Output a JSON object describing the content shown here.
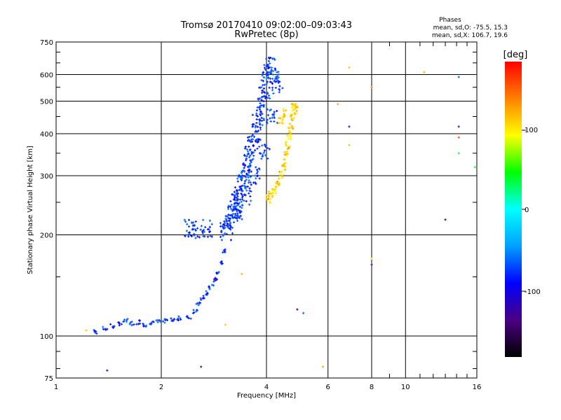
{
  "header": {
    "title": "Tromsø 20170410 09:02:00–09:03:43",
    "subtitle": "RwPretec (8p)"
  },
  "phases_box": {
    "heading": "Phases",
    "line1": "mean, sd,O: -75.5, 15.3",
    "line2": "mean, sd,X: 106.7, 19.6"
  },
  "colorbar": {
    "label": "[deg]",
    "tick_labels": [
      "100",
      "0",
      "-100"
    ],
    "stops": [
      "#000000",
      "#4b0082",
      "#0000ff",
      "#00a0ff",
      "#00ffff",
      "#00ff00",
      "#ffff00",
      "#ff8000",
      "#ff0000"
    ]
  },
  "chart_data": {
    "type": "scatter",
    "xlabel": "Frequency [MHz]",
    "ylabel": "Stationary phase Virtual Height [km]",
    "x_scale": "log",
    "y_scale": "log",
    "xlim": [
      1,
      16
    ],
    "ylim": [
      75,
      750
    ],
    "x_ticks": [
      1,
      2,
      4,
      6,
      8,
      10,
      16
    ],
    "y_ticks": [
      75,
      100,
      200,
      300,
      400,
      500,
      600,
      750
    ],
    "grid": true,
    "color_scale_range_deg": [
      -180,
      180
    ],
    "o_mode_points": [
      [
        1.3,
        103
      ],
      [
        1.38,
        105
      ],
      [
        1.45,
        107
      ],
      [
        1.52,
        109
      ],
      [
        1.58,
        111
      ],
      [
        1.65,
        109
      ],
      [
        1.72,
        110
      ],
      [
        1.8,
        108
      ],
      [
        1.88,
        110
      ],
      [
        1.96,
        110
      ],
      [
        2.05,
        111
      ],
      [
        2.15,
        112
      ],
      [
        2.25,
        113
      ],
      [
        2.4,
        114
      ],
      [
        2.5,
        118
      ],
      [
        2.55,
        125
      ],
      [
        2.62,
        130
      ],
      [
        2.7,
        134
      ],
      [
        2.78,
        140
      ],
      [
        2.85,
        147
      ],
      [
        2.92,
        155
      ],
      [
        2.98,
        165
      ],
      [
        3.02,
        180
      ],
      [
        3.06,
        205
      ],
      [
        3.1,
        215
      ],
      [
        3.15,
        225
      ],
      [
        3.2,
        235
      ],
      [
        3.25,
        245
      ],
      [
        3.3,
        255
      ],
      [
        3.35,
        265
      ],
      [
        3.4,
        280
      ],
      [
        3.45,
        295
      ],
      [
        3.5,
        310
      ],
      [
        3.55,
        330
      ],
      [
        3.6,
        350
      ],
      [
        3.66,
        375
      ],
      [
        3.72,
        400
      ],
      [
        3.78,
        430
      ],
      [
        3.85,
        460
      ],
      [
        3.9,
        500
      ],
      [
        3.95,
        540
      ],
      [
        4.0,
        580
      ],
      [
        4.05,
        620
      ],
      [
        4.1,
        640
      ],
      [
        4.2,
        600
      ],
      [
        4.3,
        560
      ],
      [
        2.4,
        210
      ],
      [
        2.55,
        208
      ],
      [
        2.7,
        210
      ],
      [
        3.3,
        230
      ],
      [
        3.5,
        260
      ],
      [
        3.7,
        300
      ],
      [
        3.95,
        350
      ],
      [
        4.15,
        450
      ]
    ],
    "x_mode_points": [
      [
        4.05,
        255
      ],
      [
        4.12,
        262
      ],
      [
        4.2,
        270
      ],
      [
        4.3,
        282
      ],
      [
        4.4,
        300
      ],
      [
        4.48,
        320
      ],
      [
        4.55,
        345
      ],
      [
        4.6,
        370
      ],
      [
        4.65,
        395
      ],
      [
        4.7,
        420
      ],
      [
        4.75,
        450
      ],
      [
        4.8,
        480
      ],
      [
        4.85,
        470
      ],
      [
        4.4,
        440
      ],
      [
        4.5,
        460
      ]
    ],
    "scatter_points": [
      {
        "x": 6.4,
        "y": 490,
        "phase": 120
      },
      {
        "x": 6.9,
        "y": 630,
        "phase": 110
      },
      {
        "x": 6.9,
        "y": 420,
        "phase": -120
      },
      {
        "x": 6.9,
        "y": 370,
        "phase": 115
      },
      {
        "x": 8.0,
        "y": 550,
        "phase": 140
      },
      {
        "x": 8.0,
        "y": 170,
        "phase": 100
      },
      {
        "x": 8.0,
        "y": 163,
        "phase": -110
      },
      {
        "x": 11.3,
        "y": 610,
        "phase": 120
      },
      {
        "x": 13.0,
        "y": 222,
        "phase": -140
      },
      {
        "x": 14.2,
        "y": 590,
        "phase": -60
      },
      {
        "x": 14.2,
        "y": 420,
        "phase": -130
      },
      {
        "x": 14.2,
        "y": 390,
        "phase": 150
      },
      {
        "x": 14.2,
        "y": 350,
        "phase": 30
      },
      {
        "x": 15.8,
        "y": 318,
        "phase": 40
      },
      {
        "x": 1.22,
        "y": 104,
        "phase": 110
      },
      {
        "x": 1.4,
        "y": 79,
        "phase": -120
      },
      {
        "x": 2.6,
        "y": 81,
        "phase": -140
      },
      {
        "x": 3.05,
        "y": 108,
        "phase": 110
      },
      {
        "x": 3.4,
        "y": 153,
        "phase": 120
      },
      {
        "x": 4.9,
        "y": 120,
        "phase": -130
      },
      {
        "x": 5.1,
        "y": 117,
        "phase": -60
      },
      {
        "x": 5.8,
        "y": 81,
        "phase": 120
      }
    ]
  }
}
